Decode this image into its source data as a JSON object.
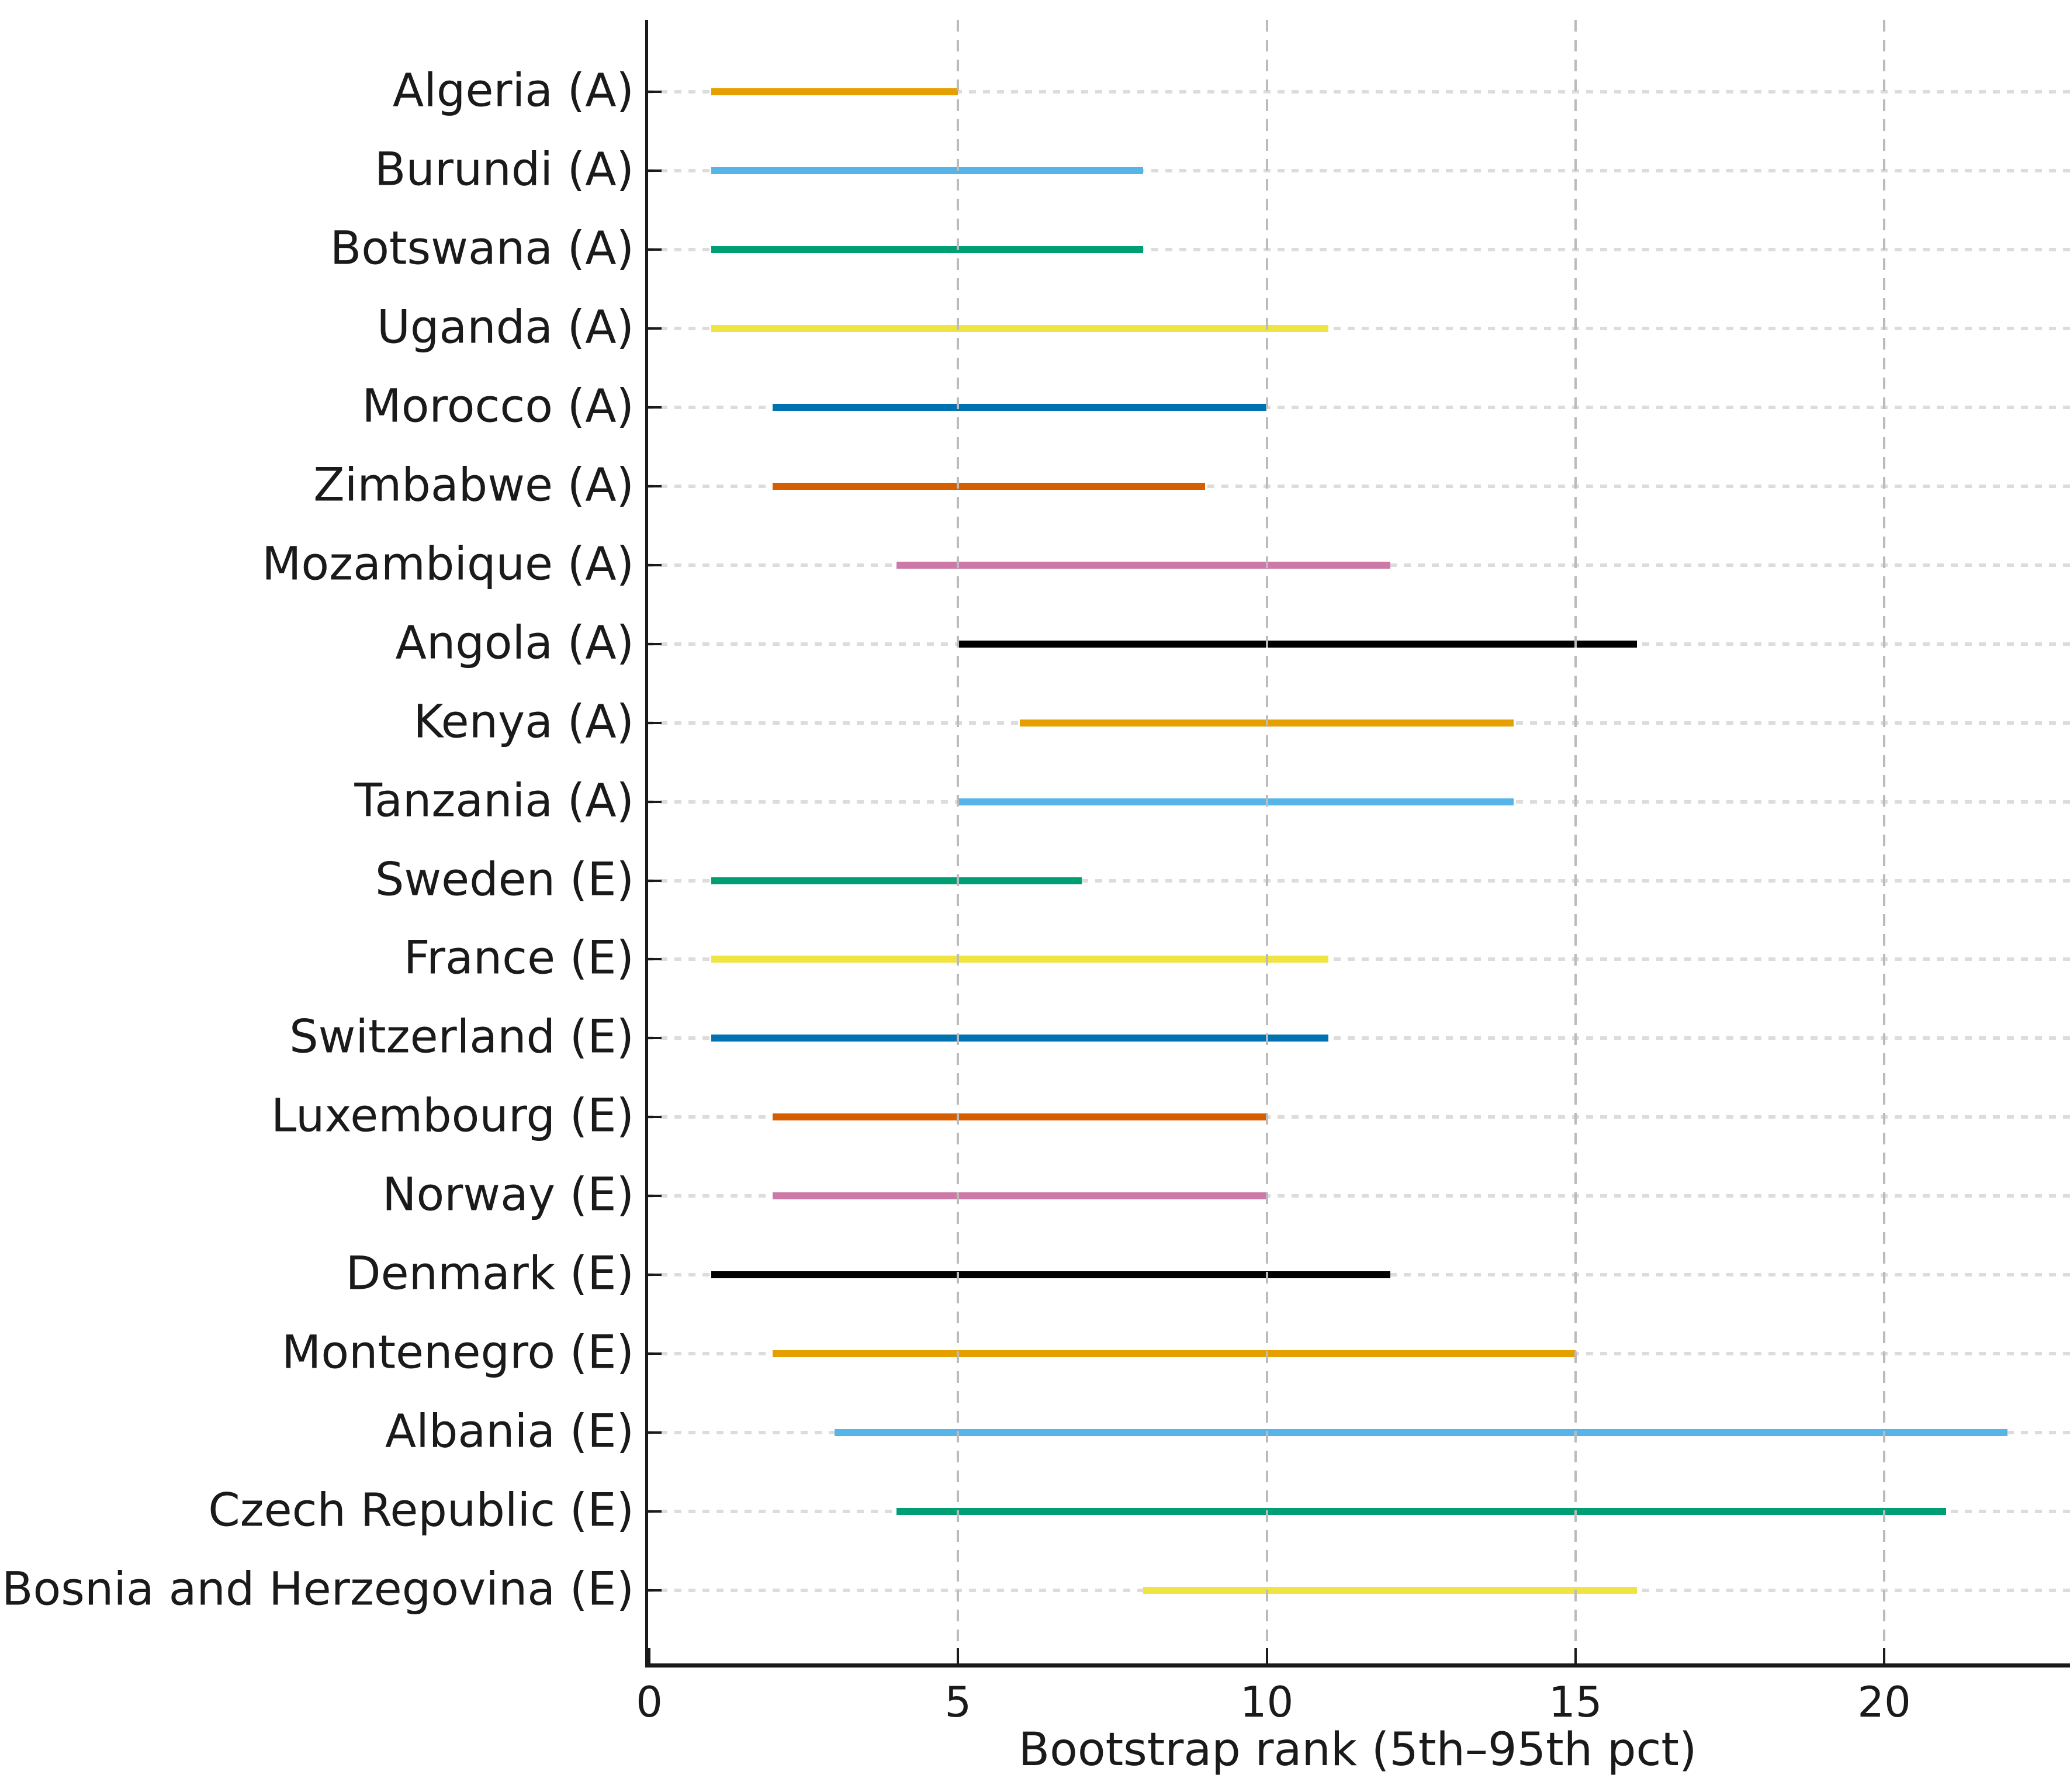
{
  "chart_data": {
    "type": "bar",
    "subtype": "horizontal-range",
    "xlabel": "Bootstrap rank (5th–95th pct)",
    "xlim": [
      0,
      23
    ],
    "x_ticks": [
      0,
      5,
      10,
      15,
      20
    ],
    "grid": true,
    "legend": "none",
    "categories": [
      "Algeria (A)",
      "Burundi (A)",
      "Botswana (A)",
      "Uganda (A)",
      "Morocco (A)",
      "Zimbabwe (A)",
      "Mozambique (A)",
      "Angola (A)",
      "Kenya (A)",
      "Tanzania (A)",
      "Sweden (E)",
      "France (E)",
      "Switzerland (E)",
      "Luxembourg (E)",
      "Norway (E)",
      "Denmark (E)",
      "Montenegro (E)",
      "Albania (E)",
      "Czech Republic (E)",
      "Bosnia and Herzegovina (E)"
    ],
    "series": [
      {
        "name": "Algeria (A)",
        "low": 1,
        "high": 5,
        "color": "#E69F00"
      },
      {
        "name": "Burundi (A)",
        "low": 1,
        "high": 8,
        "color": "#56B4E9"
      },
      {
        "name": "Botswana (A)",
        "low": 1,
        "high": 8,
        "color": "#009E73"
      },
      {
        "name": "Uganda (A)",
        "low": 1,
        "high": 11,
        "color": "#F0E442"
      },
      {
        "name": "Morocco (A)",
        "low": 2,
        "high": 10,
        "color": "#0072B2"
      },
      {
        "name": "Zimbabwe (A)",
        "low": 2,
        "high": 9,
        "color": "#D55E00"
      },
      {
        "name": "Mozambique (A)",
        "low": 4,
        "high": 12,
        "color": "#CC79A7"
      },
      {
        "name": "Angola (A)",
        "low": 5,
        "high": 16,
        "color": "#000000"
      },
      {
        "name": "Kenya (A)",
        "low": 6,
        "high": 14,
        "color": "#E69F00"
      },
      {
        "name": "Tanzania (A)",
        "low": 5,
        "high": 14,
        "color": "#56B4E9"
      },
      {
        "name": "Sweden (E)",
        "low": 1,
        "high": 7,
        "color": "#009E73"
      },
      {
        "name": "France (E)",
        "low": 1,
        "high": 11,
        "color": "#F0E442"
      },
      {
        "name": "Switzerland (E)",
        "low": 1,
        "high": 11,
        "color": "#0072B2"
      },
      {
        "name": "Luxembourg (E)",
        "low": 2,
        "high": 10,
        "color": "#D55E00"
      },
      {
        "name": "Norway (E)",
        "low": 2,
        "high": 10,
        "color": "#CC79A7"
      },
      {
        "name": "Denmark (E)",
        "low": 1,
        "high": 12,
        "color": "#000000"
      },
      {
        "name": "Montenegro (E)",
        "low": 2,
        "high": 15,
        "color": "#E69F00"
      },
      {
        "name": "Albania (E)",
        "low": 3,
        "high": 22,
        "color": "#56B4E9"
      },
      {
        "name": "Czech Republic (E)",
        "low": 4,
        "high": 21,
        "color": "#009E73"
      },
      {
        "name": "Bosnia and Herzegovina (E)",
        "low": 8,
        "high": 16,
        "color": "#F0E442"
      }
    ]
  }
}
